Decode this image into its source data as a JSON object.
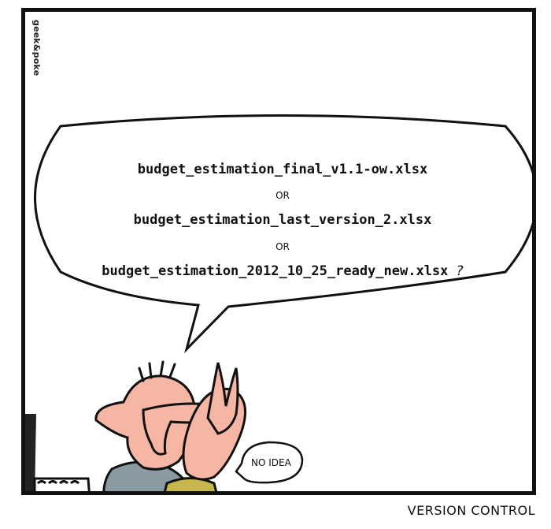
{
  "credit": "geek&poke",
  "bubble": {
    "file1": "budget_estimation_final_v1.1-ow.xlsx",
    "or1": "OR",
    "file2": "budget_estimation_last_version_2.xlsx",
    "or2": "OR",
    "file3": "budget_estimation_2012_10_25_ready_new.xlsx",
    "question_mark": "?"
  },
  "reply": "NO IDEA",
  "caption": "VERSION CONTROL",
  "colors": {
    "skin": "#f5b7a3",
    "shirt_left": "#8a9aa3",
    "shirt_right": "#c8b64a",
    "outline": "#111111"
  }
}
